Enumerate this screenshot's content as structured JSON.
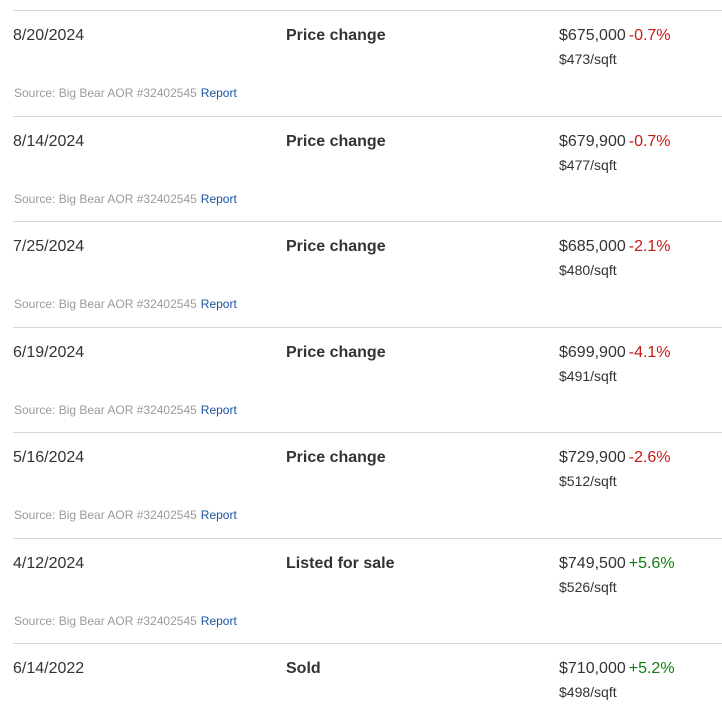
{
  "rows": [
    {
      "date": "8/20/2024",
      "event": "Price change",
      "price": "$675,000",
      "change": "-0.7%",
      "change_dir": "negative",
      "per_sqft": "$473/sqft",
      "source": "Source: Big Bear AOR #32402545",
      "report": "Report"
    },
    {
      "date": "8/14/2024",
      "event": "Price change",
      "price": "$679,900",
      "change": "-0.7%",
      "change_dir": "negative",
      "per_sqft": "$477/sqft",
      "source": "Source: Big Bear AOR #32402545",
      "report": "Report"
    },
    {
      "date": "7/25/2024",
      "event": "Price change",
      "price": "$685,000",
      "change": "-2.1%",
      "change_dir": "negative",
      "per_sqft": "$480/sqft",
      "source": "Source: Big Bear AOR #32402545",
      "report": "Report"
    },
    {
      "date": "6/19/2024",
      "event": "Price change",
      "price": "$699,900",
      "change": "-4.1%",
      "change_dir": "negative",
      "per_sqft": "$491/sqft",
      "source": "Source: Big Bear AOR #32402545",
      "report": "Report"
    },
    {
      "date": "5/16/2024",
      "event": "Price change",
      "price": "$729,900",
      "change": "-2.6%",
      "change_dir": "negative",
      "per_sqft": "$512/sqft",
      "source": "Source: Big Bear AOR #32402545",
      "report": "Report"
    },
    {
      "date": "4/12/2024",
      "event": "Listed for sale",
      "price": "$749,500",
      "change": "+5.6%",
      "change_dir": "positive",
      "per_sqft": "$526/sqft",
      "source": "Source: Big Bear AOR #32402545",
      "report": "Report"
    },
    {
      "date": "6/14/2022",
      "event": "Sold",
      "price": "$710,000",
      "change": "+5.2%",
      "change_dir": "positive",
      "per_sqft": "$498/sqft",
      "source": "",
      "report": ""
    }
  ],
  "colors": {
    "negative": "#c41a16",
    "positive": "#0f7d0f",
    "link": "#1a53a6",
    "divider": "#d6d6d6"
  }
}
